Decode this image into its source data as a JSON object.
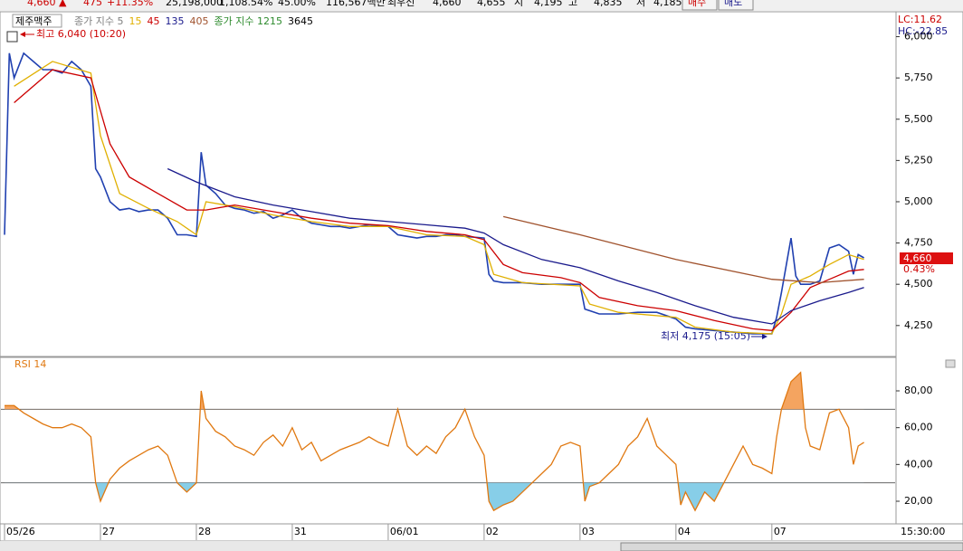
{
  "header": [
    "4,660 ▲",
    "475",
    "+11.35%",
    "25,198,000",
    "1,108.54%",
    "45.00%",
    "116,567백만",
    "최우선",
    "4,660",
    "4,655",
    "시",
    "4,195",
    "고",
    "4,835",
    "저",
    "4,185",
    "매수",
    "매도"
  ],
  "symbol": "제주맥주",
  "chart_data": [
    {
      "type": "line",
      "legend": [
        {
          "label": "종가 지수 5",
          "color": "#808080"
        },
        {
          "label": "15",
          "color": "#e0b000"
        },
        {
          "label": "45",
          "color": "#cc0000"
        },
        {
          "label": "135",
          "color": "#1a1a8c"
        },
        {
          "label": "405",
          "color": "#a0522d"
        },
        {
          "label": "종가 지수 1215",
          "color": "#2e8b2e"
        },
        {
          "label": "3645",
          "color": "#000000"
        }
      ],
      "xlim": [
        0,
        92
      ],
      "ylim": [
        4068,
        6140
      ],
      "yticks": [
        {
          "value": 4250,
          "label": "4,250"
        },
        {
          "value": 4500,
          "label": "4,500"
        },
        {
          "value": 4750,
          "label": "4,750"
        },
        {
          "value": 5000,
          "label": "5,000"
        },
        {
          "value": 5250,
          "label": "5,250"
        },
        {
          "value": 5500,
          "label": "5,500"
        },
        {
          "value": 5750,
          "label": "5,750"
        },
        {
          "value": 6000,
          "label": "6,000"
        }
      ],
      "series": [
        {
          "color": "#2040b0",
          "x": [
            0,
            0.5,
            1,
            2,
            3,
            4,
            5,
            6,
            7,
            8,
            9,
            9.5,
            10,
            11,
            12,
            13,
            14,
            15,
            16,
            17,
            18,
            19,
            20,
            20.5,
            21,
            22,
            23,
            24,
            25,
            26,
            27,
            28,
            29,
            30,
            31,
            32,
            33,
            34,
            35,
            36,
            37,
            38,
            40,
            41,
            42,
            43,
            44,
            45,
            46,
            47,
            48,
            50,
            50.5,
            51,
            52,
            54,
            56,
            58,
            60,
            60.5,
            61,
            62,
            64,
            66,
            68,
            70,
            71,
            72,
            74,
            76,
            78,
            80,
            80.5,
            81,
            82,
            82.5,
            83,
            84,
            85,
            86,
            87,
            88,
            88.5,
            89,
            89.6
          ],
          "values": [
            4800,
            5900,
            5750,
            5900,
            5850,
            5800,
            5800,
            5780,
            5850,
            5800,
            5700,
            5200,
            5150,
            5000,
            4950,
            4960,
            4940,
            4950,
            4950,
            4900,
            4800,
            4800,
            4790,
            5300,
            5100,
            5050,
            4980,
            4960,
            4950,
            4930,
            4940,
            4900,
            4920,
            4950,
            4900,
            4870,
            4860,
            4850,
            4850,
            4840,
            4850,
            4860,
            4850,
            4800,
            4790,
            4780,
            4790,
            4790,
            4800,
            4800,
            4790,
            4780,
            4560,
            4520,
            4510,
            4510,
            4500,
            4500,
            4500,
            4350,
            4340,
            4320,
            4320,
            4330,
            4330,
            4290,
            4240,
            4230,
            4220,
            4210,
            4200,
            4200,
            4300,
            4450,
            4780,
            4550,
            4500,
            4500,
            4520,
            4720,
            4740,
            4700,
            4560,
            4680,
            4660
          ]
        },
        {
          "color": "#e0b000",
          "x": [
            1,
            5,
            9,
            10,
            12,
            15,
            18,
            20,
            21,
            24,
            28,
            32,
            36,
            40,
            44,
            48,
            50,
            51,
            54,
            60,
            61,
            64,
            70,
            72,
            76,
            80,
            81,
            82,
            84,
            86,
            88,
            89.6
          ],
          "values": [
            5700,
            5850,
            5780,
            5400,
            5050,
            4960,
            4880,
            4800,
            5000,
            4970,
            4920,
            4880,
            4850,
            4850,
            4800,
            4790,
            4740,
            4560,
            4510,
            4490,
            4380,
            4330,
            4300,
            4240,
            4210,
            4200,
            4320,
            4500,
            4550,
            4620,
            4680,
            4650
          ]
        },
        {
          "color": "#cc0000",
          "x": [
            1,
            5,
            9,
            11,
            13,
            16,
            19,
            21,
            24,
            28,
            32,
            36,
            40,
            44,
            48,
            50,
            52,
            54,
            58,
            60,
            62,
            66,
            70,
            74,
            78,
            80,
            82,
            84,
            86,
            88,
            89.6
          ],
          "values": [
            5600,
            5800,
            5750,
            5350,
            5150,
            5050,
            4950,
            4950,
            4980,
            4940,
            4900,
            4870,
            4855,
            4820,
            4800,
            4770,
            4620,
            4570,
            4540,
            4510,
            4420,
            4370,
            4340,
            4280,
            4230,
            4220,
            4330,
            4480,
            4530,
            4580,
            4590
          ]
        },
        {
          "color": "#1a1a8c",
          "x": [
            17,
            20,
            24,
            28,
            32,
            36,
            40,
            44,
            48,
            50,
            52,
            56,
            60,
            64,
            68,
            72,
            76,
            80,
            82,
            85,
            88,
            89.6
          ],
          "values": [
            5200,
            5120,
            5030,
            4980,
            4940,
            4900,
            4880,
            4860,
            4840,
            4810,
            4740,
            4650,
            4600,
            4520,
            4450,
            4370,
            4300,
            4260,
            4340,
            4400,
            4450,
            4480
          ]
        },
        {
          "color": "#a0522d",
          "x": [
            52,
            60,
            70,
            80,
            85,
            89.6
          ],
          "values": [
            4910,
            4800,
            4650,
            4530,
            4510,
            4530
          ]
        }
      ],
      "annotations": [
        {
          "text": "최고 6,040 (10:20)",
          "color": "#cc0000"
        },
        {
          "text": "최저 4,175 (15:05)",
          "color": "#1a1a8c"
        }
      ],
      "lc_label": "LC:11.62",
      "hc_label": "HC:-22.85",
      "last_price": "4,660",
      "change_pct": "0.43%"
    },
    {
      "type": "line",
      "title": "RSI 14",
      "xlim": [
        0,
        92
      ],
      "ylim": [
        8.2,
        98.2
      ],
      "yticks": [
        {
          "value": 20,
          "label": "20,00"
        },
        {
          "value": 40,
          "label": "40,00"
        },
        {
          "value": 60,
          "label": "60,00"
        },
        {
          "value": 80,
          "label": "80,00"
        }
      ],
      "levels": [
        70,
        30
      ],
      "level_colors": [
        "#f4a460",
        "#87cee8"
      ],
      "series": [
        {
          "color": "#e07810",
          "x": [
            0,
            1,
            2,
            3,
            4,
            5,
            6,
            7,
            8,
            9,
            9.5,
            10,
            11,
            12,
            13,
            14,
            15,
            16,
            17,
            18,
            19,
            20,
            20.5,
            21,
            22,
            23,
            24,
            25,
            26,
            27,
            28,
            29,
            30,
            31,
            32,
            33,
            34,
            35,
            36,
            37,
            38,
            39,
            40,
            41,
            42,
            43,
            44,
            45,
            46,
            47,
            48,
            49,
            50,
            50.5,
            51,
            52,
            53,
            54,
            55,
            56,
            57,
            58,
            59,
            60,
            60.5,
            61,
            62,
            63,
            64,
            65,
            66,
            67,
            68,
            69,
            70,
            70.5,
            71,
            72,
            73,
            74,
            75,
            76,
            77,
            78,
            79,
            80,
            80.5,
            81,
            82,
            83,
            83.5,
            84,
            85,
            86,
            87,
            88,
            88.5,
            89,
            89.6
          ],
          "values": [
            72,
            72,
            68,
            65,
            62,
            60,
            60,
            62,
            60,
            55,
            30,
            20,
            32,
            38,
            42,
            45,
            48,
            50,
            45,
            30,
            25,
            30,
            80,
            65,
            58,
            55,
            50,
            48,
            45,
            52,
            56,
            50,
            60,
            48,
            52,
            42,
            45,
            48,
            50,
            52,
            55,
            52,
            50,
            70,
            50,
            45,
            50,
            46,
            55,
            60,
            70,
            55,
            45,
            20,
            15,
            18,
            20,
            25,
            30,
            35,
            40,
            50,
            52,
            50,
            20,
            28,
            30,
            35,
            40,
            50,
            55,
            65,
            50,
            45,
            40,
            18,
            25,
            15,
            25,
            20,
            30,
            40,
            50,
            40,
            38,
            35,
            55,
            70,
            85,
            90,
            60,
            50,
            48,
            68,
            70,
            60,
            40,
            50,
            52
          ]
        }
      ],
      "xticks": [
        {
          "value": 0,
          "label": "05/26"
        },
        {
          "value": 10,
          "label": "27"
        },
        {
          "value": 20,
          "label": "28"
        },
        {
          "value": 30,
          "label": "31"
        },
        {
          "value": 40,
          "label": "06/01"
        },
        {
          "value": 50,
          "label": "02"
        },
        {
          "value": 60,
          "label": "03"
        },
        {
          "value": 70,
          "label": "04"
        },
        {
          "value": 80,
          "label": "07"
        }
      ],
      "x_end_label": "15:30:00"
    }
  ]
}
